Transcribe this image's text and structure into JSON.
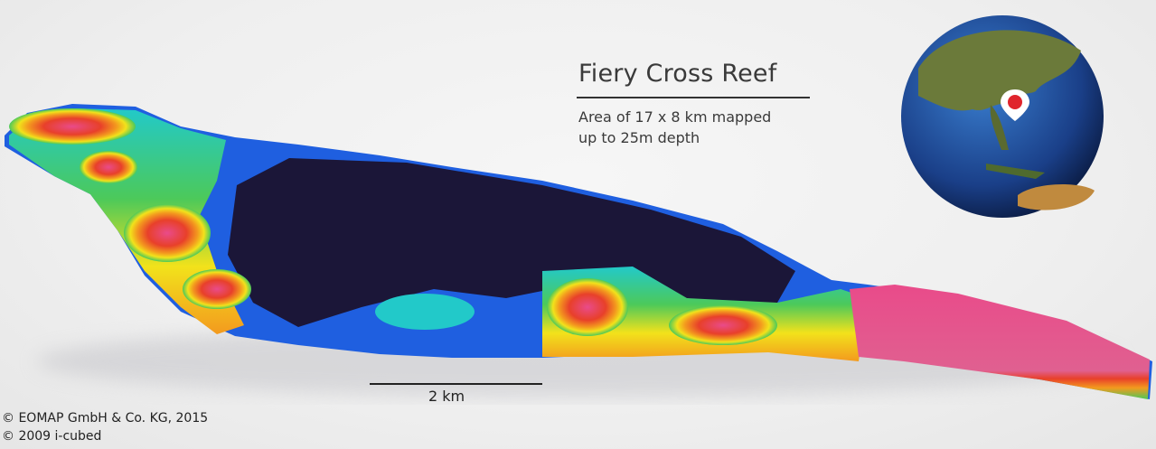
{
  "map": {
    "title": "Fiery Cross Reef",
    "subtitle_lines": [
      "Area of 17 x 8 km mapped",
      "up to 25m depth"
    ],
    "scale_bar_label": "2 km",
    "credits": [
      "© EOMAP GmbH & Co.  KG, 2015",
      "© 2009 i-cubed"
    ],
    "depth_colors": [
      "#e94b8a",
      "#e8402a",
      "#f39a1e",
      "#f2e21b",
      "#4cc95a",
      "#22c9c9",
      "#1f5fe0",
      "#2a1f6e",
      "#1b1638"
    ],
    "locator_globe": {
      "marker_icon": "map-pin-icon",
      "marker_color": "#e0242c"
    }
  }
}
